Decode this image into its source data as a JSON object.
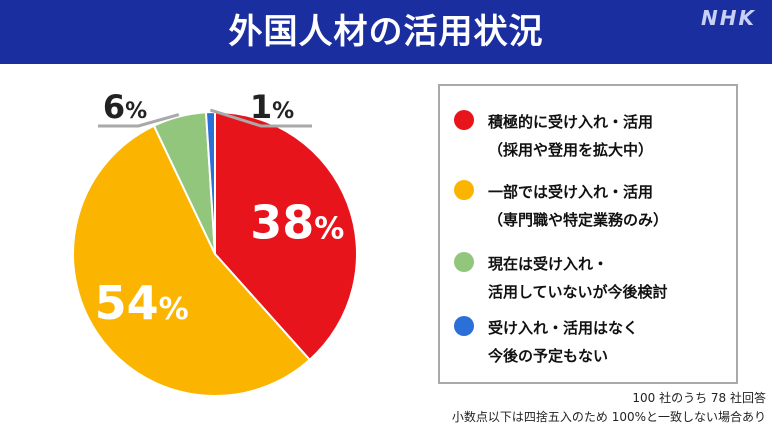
{
  "header": {
    "title": "外国人材の活用状況",
    "logo": "NHK"
  },
  "colors": {
    "header_bg": "#1a2ea0"
  },
  "chart_data": {
    "type": "pie",
    "title": "外国人材の活用状況",
    "unit": "%",
    "slices": [
      {
        "label": "積極的に受け入れ・活用\n（採用や登用を拡大中）",
        "value": 38,
        "display": "38",
        "color": "#e8141c"
      },
      {
        "label": "一部では受け入れ・活用\n（専門職や特定業務のみ）",
        "value": 54,
        "display": "54",
        "color": "#fbb500"
      },
      {
        "label": "現在は受け入れ・\n活用していないが今後検討",
        "value": 6,
        "display": "6",
        "color": "#92c67d"
      },
      {
        "label": "受け入れ・活用はなく\n今後の予定もない",
        "value": 1,
        "display": "1",
        "color": "#2b6fd8"
      }
    ]
  },
  "notes": {
    "respondents": "100 社のうち 78 社回答",
    "rounding": "小数点以下は四捨五入のため 100%と一致しない場合あり"
  }
}
